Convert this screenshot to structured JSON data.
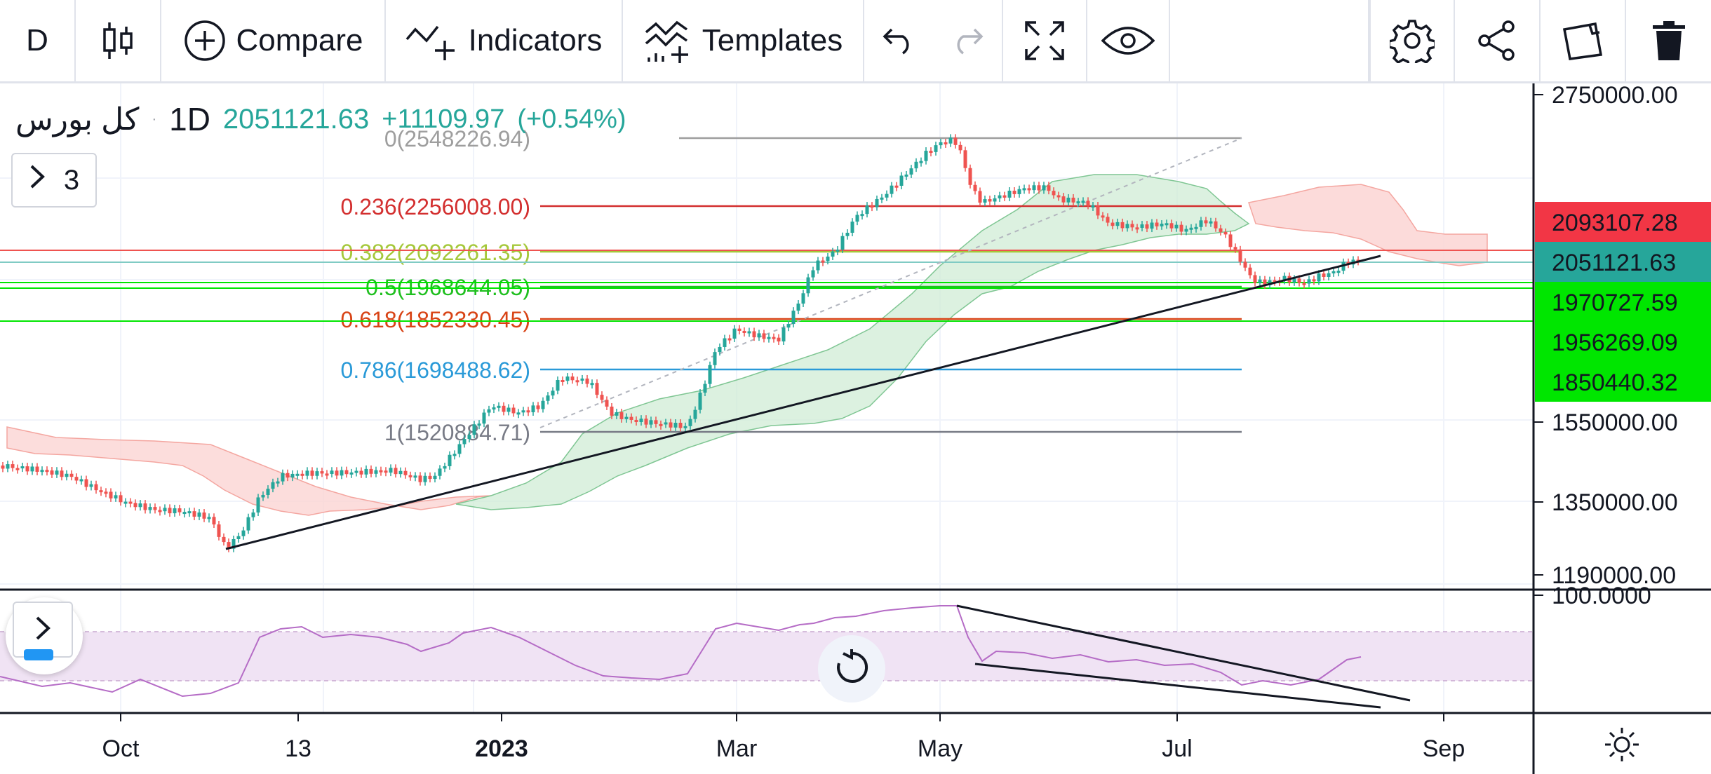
{
  "toolbar": {
    "interval": "D",
    "compare_label": "Compare",
    "indicators_label": "Indicators",
    "templates_label": "Templates"
  },
  "legend": {
    "symbol": "کل بورس",
    "separator": "·",
    "timeframe": "1D",
    "last_price": "2051121.63",
    "change": "+11109.97",
    "change_pct": "(+0.54%)"
  },
  "indicators_count": "3",
  "colors": {
    "up": "#26a69a",
    "down": "#ef5350",
    "rsi": "#9c27b0",
    "fib_0": "#787b86",
    "fib_236": "#d32f2f",
    "fib_382": "#a5c83a",
    "fib_5": "#2ee62e",
    "fib_618": "#d84315",
    "fib_786": "#2a9ad8",
    "fib_1": "#787b86"
  },
  "fib_levels": [
    {
      "ratio": "0",
      "label": "0(2548226.94)",
      "value": 2548226.94,
      "color": "#9e9e9e"
    },
    {
      "ratio": "0.236",
      "label": "0.236(2256008.00)",
      "value": 2256008.0,
      "color": "#d32f2f"
    },
    {
      "ratio": "0.382",
      "label": "0.382(2092261.35)",
      "value": 2092261.35,
      "color": "#a5c83a"
    },
    {
      "ratio": "0.5",
      "label": "0.5(1968644.05)",
      "value": 1968644.05,
      "color": "#1fbf1f"
    },
    {
      "ratio": "0.618",
      "label": "0.618(1852330.45)",
      "value": 1852330.45,
      "color": "#d84315"
    },
    {
      "ratio": "0.786",
      "label": "0.786(1698488.62)",
      "value": 1698488.62,
      "color": "#2a9ad8"
    },
    {
      "ratio": "1",
      "label": "1(1520884.71)",
      "value": 1520884.71,
      "color": "#787b86"
    }
  ],
  "price_axis": {
    "ticks": [
      "2750000.00",
      "1550000.00",
      "1350000.00",
      "1190000.00"
    ],
    "tags": [
      {
        "label": "2093107.28",
        "bg": "#f23645",
        "fg": "#ffffff"
      },
      {
        "label": "2051121.63",
        "bg": "#26a69a",
        "fg": "#ffffff"
      },
      {
        "label": "1970727.59",
        "bg": "#00e600",
        "fg": "#131722"
      },
      {
        "label": "1956269.09",
        "bg": "#00e600",
        "fg": "#131722"
      },
      {
        "label": "1850440.32",
        "bg": "#00e600",
        "fg": "#131722"
      }
    ]
  },
  "rsi_axis": {
    "top_label": "100.0000"
  },
  "time_axis": {
    "labels": [
      {
        "text": "Oct",
        "bold": false
      },
      {
        "text": "13",
        "bold": false
      },
      {
        "text": "2023",
        "bold": true
      },
      {
        "text": "Mar",
        "bold": false
      },
      {
        "text": "May",
        "bold": false
      },
      {
        "text": "Jul",
        "bold": false
      },
      {
        "text": "Sep",
        "bold": false
      }
    ]
  }
}
